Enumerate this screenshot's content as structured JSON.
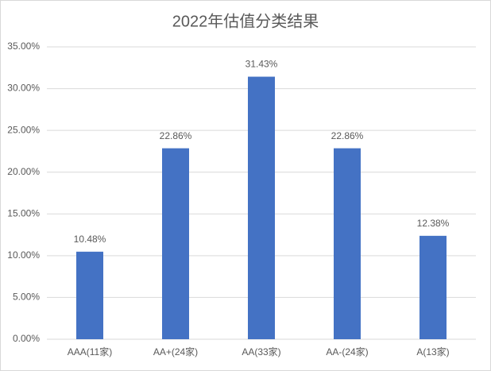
{
  "chart_data": {
    "type": "bar",
    "title": "2022年估值分类结果",
    "categories": [
      "AAA(11家)",
      "AA+(24家)",
      "AA(33家)",
      "AA-(24家)",
      "A(13家)"
    ],
    "values": [
      10.48,
      22.86,
      31.43,
      22.86,
      12.38
    ],
    "value_labels": [
      "10.48%",
      "22.86%",
      "31.43%",
      "22.86%",
      "12.38%"
    ],
    "color": "#4472c4",
    "ylim": [
      0,
      35
    ],
    "yticks": [
      {
        "value": 0,
        "label": "0.00%"
      },
      {
        "value": 5,
        "label": "5.00%"
      },
      {
        "value": 10,
        "label": "10.00%"
      },
      {
        "value": 15,
        "label": "15.00%"
      },
      {
        "value": 20,
        "label": "20.00%"
      },
      {
        "value": 25,
        "label": "25.00%"
      },
      {
        "value": 30,
        "label": "30.00%"
      },
      {
        "value": 35,
        "label": "35.00%"
      }
    ],
    "grid": true
  }
}
